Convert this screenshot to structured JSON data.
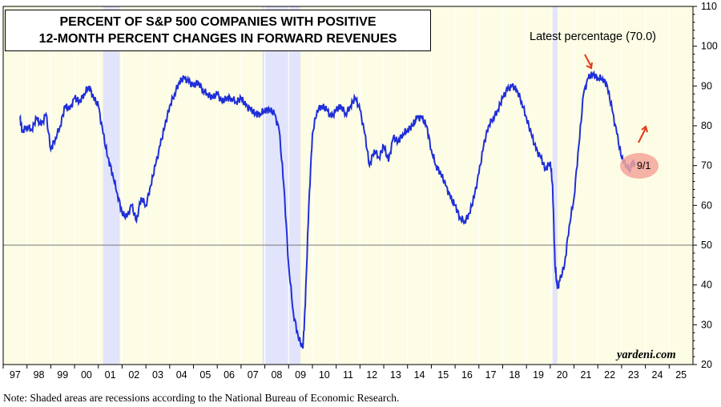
{
  "chart_data": {
    "type": "line",
    "title_line1": "PERCENT OF S&P 500 COMPANIES WITH POSITIVE",
    "title_line2": "12-MONTH PERCENT CHANGES IN FORWARD REVENUES",
    "annotation_latest": "Latest percentage (70.0)",
    "annotation_date": "9/1",
    "source": "yardeni.com",
    "note": "Note: Shaded areas are recessions according to the National Bureau of Economic Research.",
    "xlim": [
      1997,
      2026
    ],
    "ylim": [
      20,
      110
    ],
    "x_tick_labels": [
      "97",
      "98",
      "99",
      "00",
      "01",
      "02",
      "03",
      "04",
      "05",
      "06",
      "07",
      "08",
      "09",
      "10",
      "11",
      "12",
      "13",
      "14",
      "15",
      "16",
      "17",
      "18",
      "19",
      "20",
      "21",
      "22",
      "23",
      "24",
      "25"
    ],
    "y_ticks": [
      20,
      30,
      40,
      50,
      60,
      70,
      80,
      90,
      100,
      110
    ],
    "reference_line": 50,
    "recessions": [
      [
        2001.2,
        2001.9
      ],
      [
        2007.9,
        2009.5
      ],
      [
        2020.1,
        2020.3
      ]
    ],
    "series": [
      {
        "values": [
          [
            1997.7,
            82
          ],
          [
            1997.8,
            78.5
          ],
          [
            1998.0,
            80
          ],
          [
            1998.2,
            79
          ],
          [
            1998.4,
            82
          ],
          [
            1998.6,
            80
          ],
          [
            1998.8,
            83
          ],
          [
            1999.0,
            74
          ],
          [
            1999.2,
            77
          ],
          [
            1999.4,
            80
          ],
          [
            1999.6,
            85
          ],
          [
            1999.8,
            84
          ],
          [
            2000.0,
            87
          ],
          [
            2000.2,
            86
          ],
          [
            2000.4,
            88
          ],
          [
            2000.6,
            90
          ],
          [
            2000.8,
            87
          ],
          [
            2001.0,
            85
          ],
          [
            2001.2,
            78
          ],
          [
            2001.4,
            72
          ],
          [
            2001.6,
            68
          ],
          [
            2001.8,
            63
          ],
          [
            2002.0,
            58
          ],
          [
            2002.2,
            57
          ],
          [
            2002.4,
            60
          ],
          [
            2002.6,
            56
          ],
          [
            2002.8,
            62
          ],
          [
            2003.0,
            60
          ],
          [
            2003.2,
            65
          ],
          [
            2003.4,
            70
          ],
          [
            2003.6,
            75
          ],
          [
            2003.8,
            80
          ],
          [
            2004.0,
            85
          ],
          [
            2004.2,
            88
          ],
          [
            2004.4,
            91
          ],
          [
            2004.6,
            92
          ],
          [
            2004.8,
            91
          ],
          [
            2005.0,
            90
          ],
          [
            2005.2,
            91
          ],
          [
            2005.4,
            89
          ],
          [
            2005.6,
            88
          ],
          [
            2005.8,
            87
          ],
          [
            2006.0,
            88
          ],
          [
            2006.2,
            86
          ],
          [
            2006.4,
            87
          ],
          [
            2006.6,
            87
          ],
          [
            2006.8,
            86
          ],
          [
            2007.0,
            87
          ],
          [
            2007.2,
            85
          ],
          [
            2007.4,
            84
          ],
          [
            2007.6,
            83
          ],
          [
            2007.8,
            83
          ],
          [
            2008.0,
            84
          ],
          [
            2008.2,
            84
          ],
          [
            2008.4,
            83
          ],
          [
            2008.6,
            79
          ],
          [
            2008.8,
            65
          ],
          [
            2009.0,
            45
          ],
          [
            2009.2,
            33
          ],
          [
            2009.4,
            27
          ],
          [
            2009.6,
            24
          ],
          [
            2009.7,
            35
          ],
          [
            2009.85,
            60
          ],
          [
            2010.0,
            78
          ],
          [
            2010.2,
            84
          ],
          [
            2010.4,
            85
          ],
          [
            2010.6,
            84
          ],
          [
            2010.8,
            82
          ],
          [
            2011.0,
            84
          ],
          [
            2011.2,
            85
          ],
          [
            2011.4,
            83
          ],
          [
            2011.6,
            85
          ],
          [
            2011.8,
            87
          ],
          [
            2012.0,
            84
          ],
          [
            2012.2,
            78
          ],
          [
            2012.4,
            70
          ],
          [
            2012.6,
            74
          ],
          [
            2012.8,
            72
          ],
          [
            2013.0,
            75
          ],
          [
            2013.2,
            71
          ],
          [
            2013.4,
            77
          ],
          [
            2013.6,
            76
          ],
          [
            2013.8,
            78
          ],
          [
            2014.0,
            79
          ],
          [
            2014.2,
            80
          ],
          [
            2014.4,
            82
          ],
          [
            2014.6,
            82
          ],
          [
            2014.8,
            80
          ],
          [
            2015.0,
            74
          ],
          [
            2015.2,
            70
          ],
          [
            2015.4,
            68
          ],
          [
            2015.6,
            65
          ],
          [
            2015.8,
            62
          ],
          [
            2016.0,
            60
          ],
          [
            2016.2,
            57
          ],
          [
            2016.4,
            56
          ],
          [
            2016.6,
            58
          ],
          [
            2016.8,
            62
          ],
          [
            2017.0,
            68
          ],
          [
            2017.2,
            75
          ],
          [
            2017.4,
            80
          ],
          [
            2017.6,
            82
          ],
          [
            2017.8,
            84
          ],
          [
            2018.0,
            87
          ],
          [
            2018.2,
            89
          ],
          [
            2018.4,
            90
          ],
          [
            2018.6,
            89
          ],
          [
            2018.8,
            86
          ],
          [
            2019.0,
            82
          ],
          [
            2019.2,
            78
          ],
          [
            2019.4,
            74
          ],
          [
            2019.6,
            72
          ],
          [
            2019.8,
            69
          ],
          [
            2020.0,
            71
          ],
          [
            2020.1,
            65
          ],
          [
            2020.2,
            45
          ],
          [
            2020.3,
            39
          ],
          [
            2020.4,
            41
          ],
          [
            2020.6,
            45
          ],
          [
            2020.8,
            55
          ],
          [
            2021.0,
            62
          ],
          [
            2021.2,
            75
          ],
          [
            2021.4,
            88
          ],
          [
            2021.6,
            92
          ],
          [
            2021.8,
            93
          ],
          [
            2022.0,
            92
          ],
          [
            2022.2,
            92
          ],
          [
            2022.4,
            90
          ],
          [
            2022.6,
            84
          ],
          [
            2022.8,
            78
          ],
          [
            2023.0,
            72
          ],
          [
            2023.2,
            70
          ],
          [
            2023.35,
            69
          ],
          [
            2023.45,
            71
          ],
          [
            2023.55,
            70
          ]
        ]
      }
    ]
  }
}
